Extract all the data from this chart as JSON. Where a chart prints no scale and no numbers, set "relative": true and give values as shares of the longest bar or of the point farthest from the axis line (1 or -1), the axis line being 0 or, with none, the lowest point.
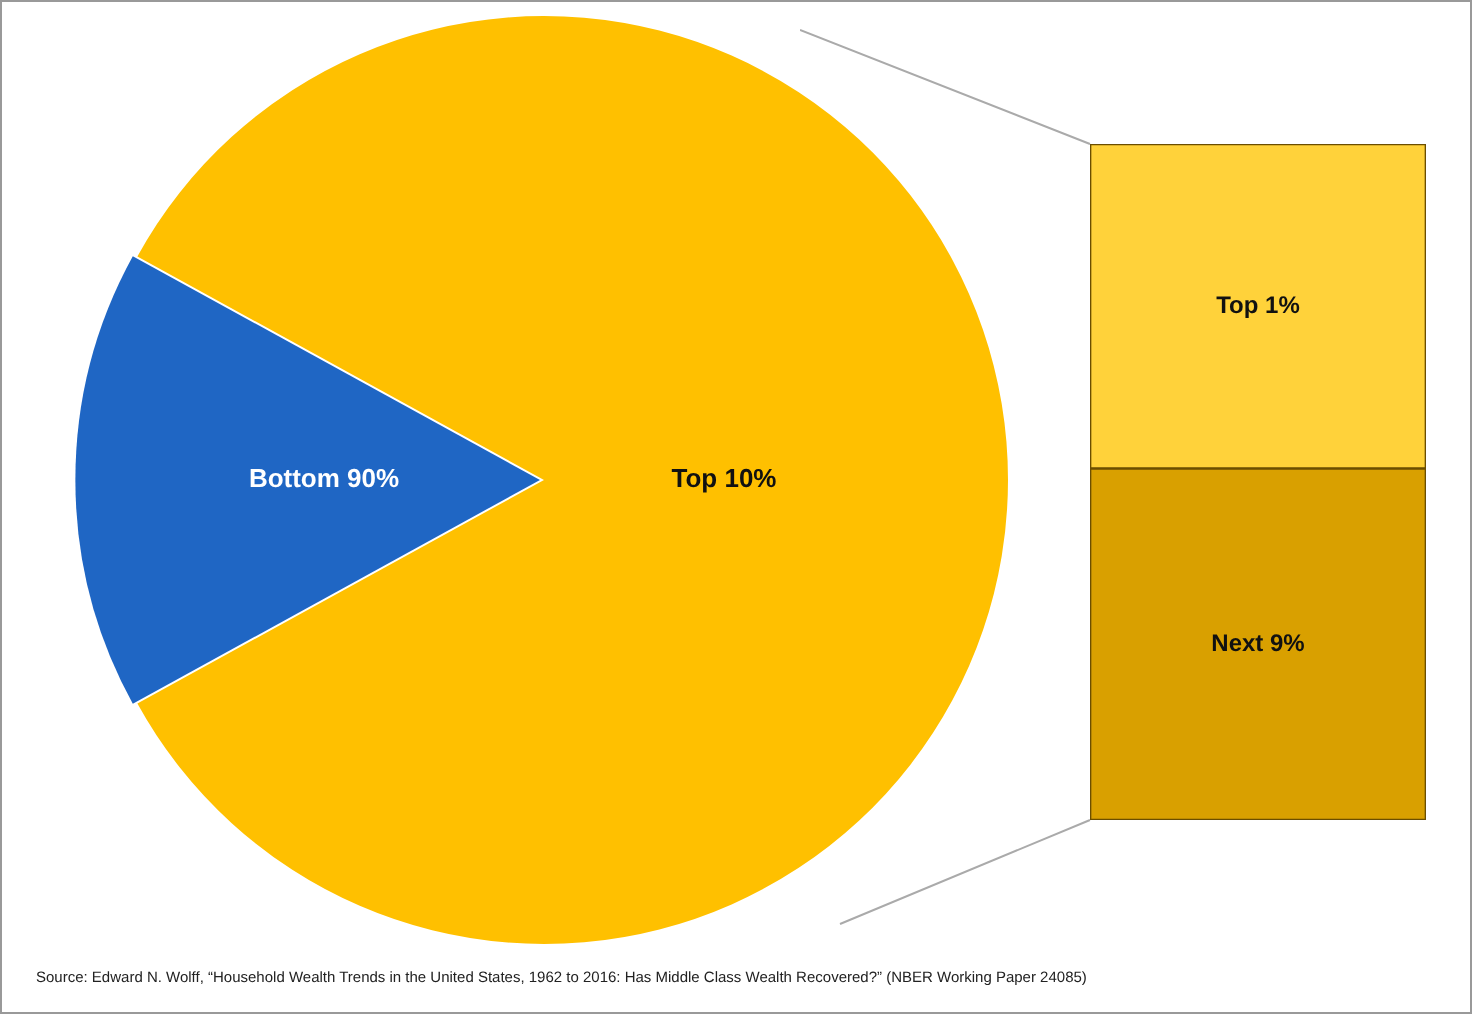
{
  "chart_data": [
    {
      "type": "pie",
      "categories": [
        "Bottom 90%",
        "Top 10%"
      ],
      "values": [
        16,
        84
      ],
      "colors": [
        "#1f66c4",
        "#ffc000"
      ],
      "annotations": [
        "Source: Edward N. Wolff, “Household Wealth Trends in the United States, 1962 to 2016: Has Middle Class Wealth Recovered?” (NBER Working Paper 24085)"
      ]
    },
    {
      "type": "bar",
      "stacked": true,
      "relative": true,
      "categories": [
        null
      ],
      "series": [
        {
          "name": "Next 9%",
          "color": "#d9a000",
          "values": [
            0.52
          ]
        },
        {
          "name": "Top 1%",
          "color": "#ffd23a",
          "values": [
            0.48
          ]
        }
      ]
    }
  ]
}
